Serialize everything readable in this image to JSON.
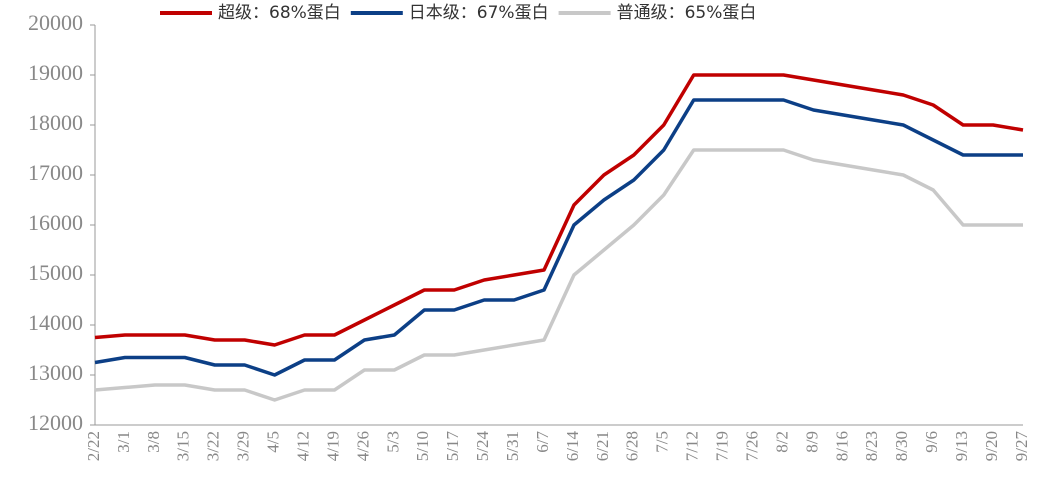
{
  "chart_data": {
    "type": "line",
    "categories": [
      "2/22",
      "3/1",
      "3/8",
      "3/15",
      "3/22",
      "3/29",
      "4/5",
      "4/12",
      "4/19",
      "4/26",
      "5/3",
      "5/10",
      "5/17",
      "5/24",
      "5/31",
      "6/7",
      "6/14",
      "6/21",
      "6/28",
      "7/5",
      "7/12",
      "7/19",
      "7/26",
      "8/2",
      "8/9",
      "8/16",
      "8/23",
      "8/30",
      "9/6",
      "9/13",
      "9/20",
      "9/27"
    ],
    "series": [
      {
        "name": "超级：68%蛋白",
        "color": "#c00000",
        "values": [
          13750,
          13800,
          13800,
          13800,
          13700,
          13700,
          13600,
          13800,
          13800,
          14100,
          14400,
          14700,
          14700,
          14900,
          15000,
          15100,
          16400,
          17000,
          17400,
          18000,
          19000,
          19000,
          19000,
          19000,
          18900,
          18800,
          18700,
          18600,
          18400,
          18000,
          18000,
          17900
        ]
      },
      {
        "name": "日本级：67%蛋白",
        "color": "#0c3f86",
        "values": [
          13250,
          13350,
          13350,
          13350,
          13200,
          13200,
          13000,
          13300,
          13300,
          13700,
          13800,
          14300,
          14300,
          14500,
          14500,
          14700,
          16000,
          16500,
          16900,
          17500,
          18500,
          18500,
          18500,
          18500,
          18300,
          18200,
          18100,
          18000,
          17700,
          17400,
          17400,
          17400
        ]
      },
      {
        "name": "普通级：65%蛋白",
        "color": "#c8c8c8",
        "values": [
          12700,
          12750,
          12800,
          12800,
          12700,
          12700,
          12500,
          12700,
          12700,
          13100,
          13100,
          13400,
          13400,
          13500,
          13600,
          13700,
          15000,
          15500,
          16000,
          16600,
          17500,
          17500,
          17500,
          17500,
          17300,
          17200,
          17100,
          17000,
          16700,
          16000,
          16000,
          16000
        ]
      }
    ],
    "ylim": [
      12000,
      20000
    ],
    "yticks": [
      12000,
      13000,
      14000,
      15000,
      16000,
      17000,
      18000,
      19000,
      20000
    ]
  }
}
